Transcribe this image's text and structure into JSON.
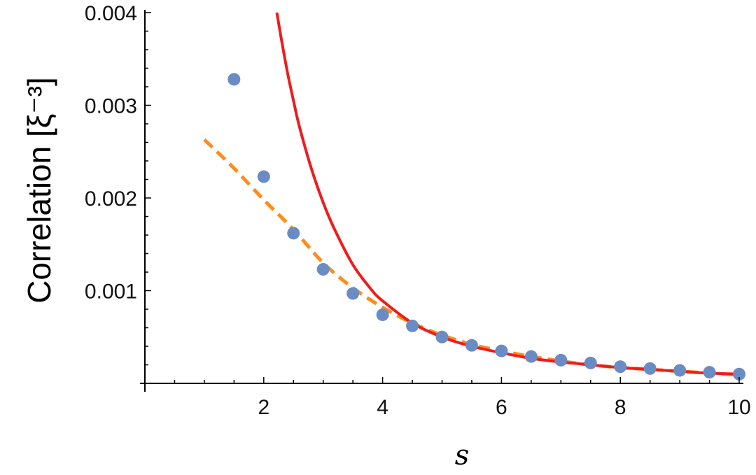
{
  "chart_data": {
    "type": "scatter",
    "title": "",
    "xlabel": "s",
    "ylabel": "Correlation [ξ⁻³]",
    "xlim": [
      0,
      10
    ],
    "ylim": [
      0,
      0.004
    ],
    "x_ticks": [
      "2",
      "4",
      "6",
      "8",
      "10"
    ],
    "y_ticks": [
      "0.001",
      "0.002",
      "0.003",
      "0.004"
    ],
    "grid": false,
    "series": [
      {
        "kind": "points",
        "color": "#6a8cc4",
        "x": [
          1.5,
          2.0,
          2.5,
          3.0,
          3.5,
          4.0,
          4.5,
          5.0,
          5.5,
          6.0,
          6.5,
          7.0,
          7.5,
          8.0,
          8.5,
          9.0,
          9.5,
          10.0
        ],
        "y": [
          0.00328,
          0.00223,
          0.00162,
          0.00123,
          0.00097,
          0.00074,
          0.00062,
          0.0005,
          0.00041,
          0.00035,
          0.00029,
          0.00025,
          0.00022,
          0.00018,
          0.00016,
          0.00014,
          0.00012,
          0.0001
        ]
      },
      {
        "kind": "dashed-line",
        "color": "#ff8c1a",
        "x": [
          1.0,
          1.5,
          2.0,
          2.5,
          3.0,
          3.5,
          4.0,
          4.5,
          5.0,
          5.5,
          6.0,
          6.5,
          7.0,
          7.5,
          8.0,
          8.5,
          9.0,
          9.5,
          10.0
        ],
        "y": [
          0.00263,
          0.00232,
          0.00198,
          0.00166,
          0.0013,
          0.00103,
          0.00082,
          0.00065,
          0.00052,
          0.00042,
          0.00035,
          0.00029,
          0.00024,
          0.0002,
          0.00017,
          0.00015,
          0.00013,
          0.00011,
          9e-05
        ]
      },
      {
        "kind": "solid-line",
        "color": "#ee1c1c",
        "x": [
          2.22,
          2.3,
          2.4,
          2.5,
          2.6,
          2.8,
          3.0,
          3.2,
          3.5,
          3.8,
          4.0,
          4.5,
          5.0,
          5.5,
          6.0,
          6.5,
          7.0,
          7.5,
          8.0,
          8.5,
          9.0,
          9.5,
          10.0
        ],
        "y": [
          0.004,
          0.0037,
          0.00335,
          0.00305,
          0.00277,
          0.00232,
          0.00195,
          0.00165,
          0.00128,
          0.00102,
          0.00089,
          0.00065,
          0.0005,
          0.0004,
          0.00033,
          0.00027,
          0.00023,
          0.0002,
          0.00017,
          0.00015,
          0.00013,
          0.00011,
          0.0001
        ]
      }
    ]
  }
}
